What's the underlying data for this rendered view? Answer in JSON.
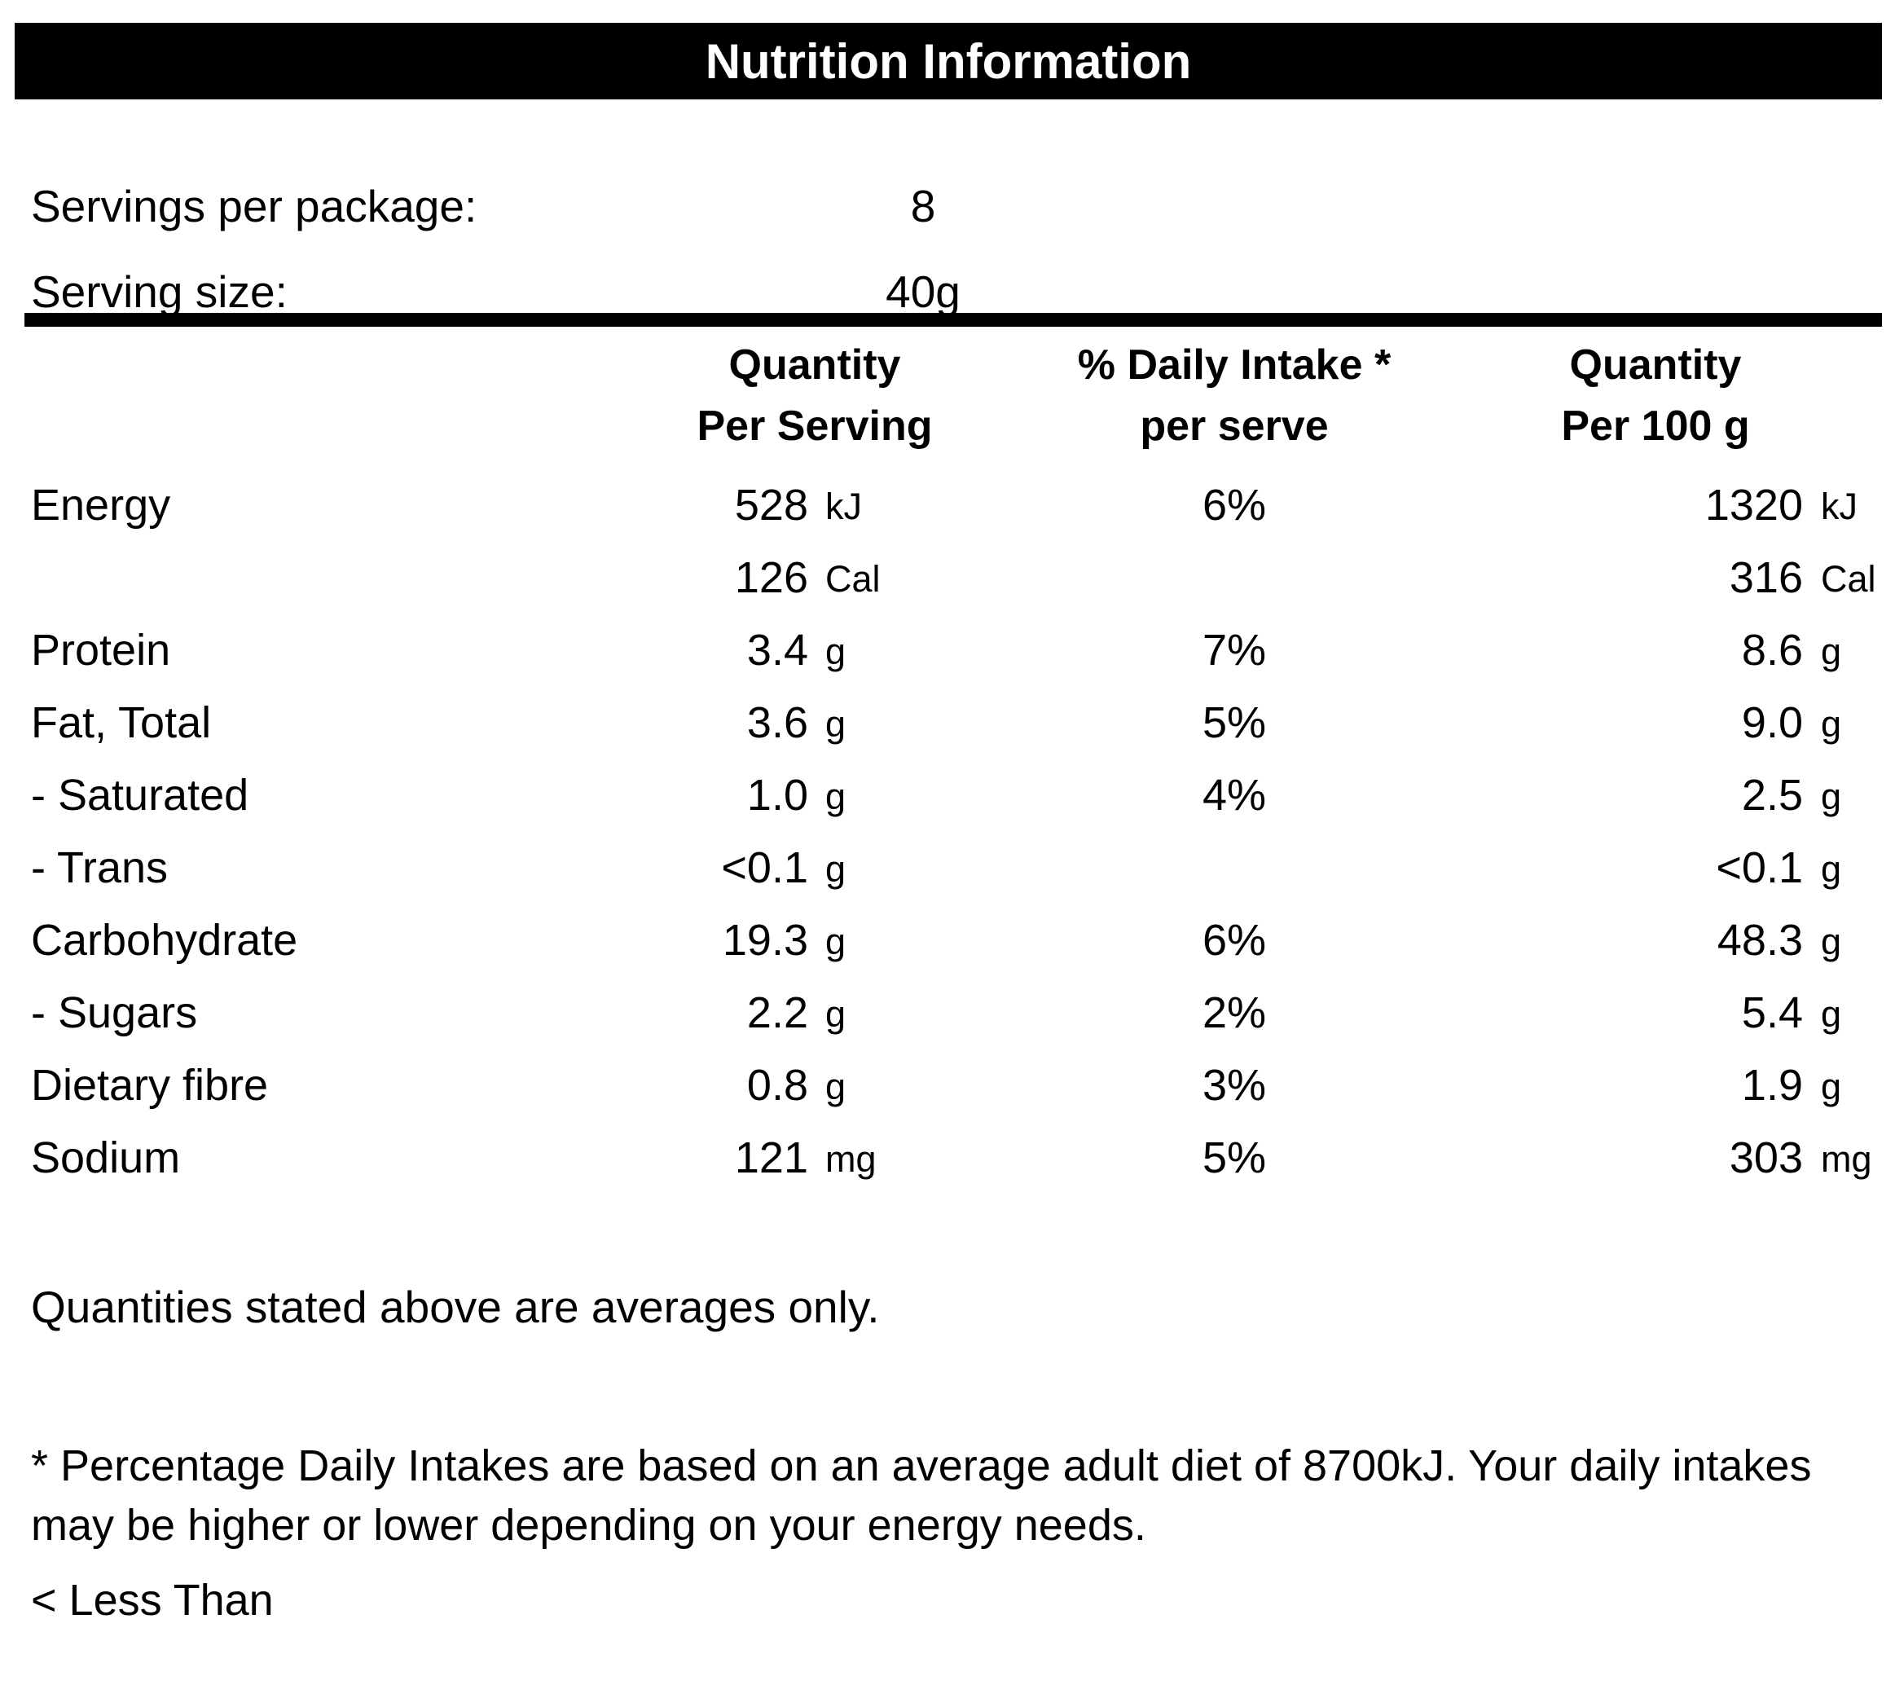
{
  "title": "Nutrition Information",
  "meta": {
    "servings_label": "Servings per package:",
    "servings_value": "8",
    "serving_size_label": "Serving size:",
    "serving_size_value": "40g"
  },
  "columns": {
    "per_serving_line1": "Quantity",
    "per_serving_line2": "Per Serving",
    "daily_intake_line1": "% Daily Intake *",
    "daily_intake_line2": "per serve",
    "per_100g_line1": "Quantity",
    "per_100g_line2": "Per 100 g"
  },
  "rows": [
    {
      "label": "Energy",
      "serving_qty": "528",
      "serving_unit": "kJ",
      "daily_intake": "6%",
      "per100_qty": "1320",
      "per100_unit": "kJ"
    },
    {
      "label": "",
      "serving_qty": "126",
      "serving_unit": "Cal",
      "daily_intake": "",
      "per100_qty": "316",
      "per100_unit": "Cal"
    },
    {
      "label": "Protein",
      "serving_qty": "3.4",
      "serving_unit": "g",
      "daily_intake": "7%",
      "per100_qty": "8.6",
      "per100_unit": "g"
    },
    {
      "label": "Fat, Total",
      "serving_qty": "3.6",
      "serving_unit": "g",
      "daily_intake": "5%",
      "per100_qty": "9.0",
      "per100_unit": "g"
    },
    {
      "label": "- Saturated",
      "serving_qty": "1.0",
      "serving_unit": "g",
      "daily_intake": "4%",
      "per100_qty": "2.5",
      "per100_unit": "g"
    },
    {
      "label": "- Trans",
      "serving_qty": "<0.1",
      "serving_unit": "g",
      "daily_intake": "",
      "per100_qty": "<0.1",
      "per100_unit": "g"
    },
    {
      "label": "Carbohydrate",
      "serving_qty": "19.3",
      "serving_unit": "g",
      "daily_intake": "6%",
      "per100_qty": "48.3",
      "per100_unit": "g"
    },
    {
      "label": "- Sugars",
      "serving_qty": "2.2",
      "serving_unit": "g",
      "daily_intake": "2%",
      "per100_qty": "5.4",
      "per100_unit": "g"
    },
    {
      "label": "Dietary fibre",
      "serving_qty": "0.8",
      "serving_unit": "g",
      "daily_intake": "3%",
      "per100_qty": "1.9",
      "per100_unit": "g"
    },
    {
      "label": "Sodium",
      "serving_qty": "121",
      "serving_unit": "mg",
      "daily_intake": "5%",
      "per100_qty": "303",
      "per100_unit": "mg"
    }
  ],
  "notes": {
    "averages": "Quantities stated above are averages only.",
    "daily_intake_footnote": "* Percentage Daily Intakes are based on an average adult diet of 8700kJ. Your daily intakes may be higher or lower depending on your energy needs.",
    "less_than": "< Less Than"
  },
  "colors": {
    "header_bg": "#000000",
    "header_text": "#ffffff",
    "text": "#000000",
    "background": "#ffffff"
  }
}
